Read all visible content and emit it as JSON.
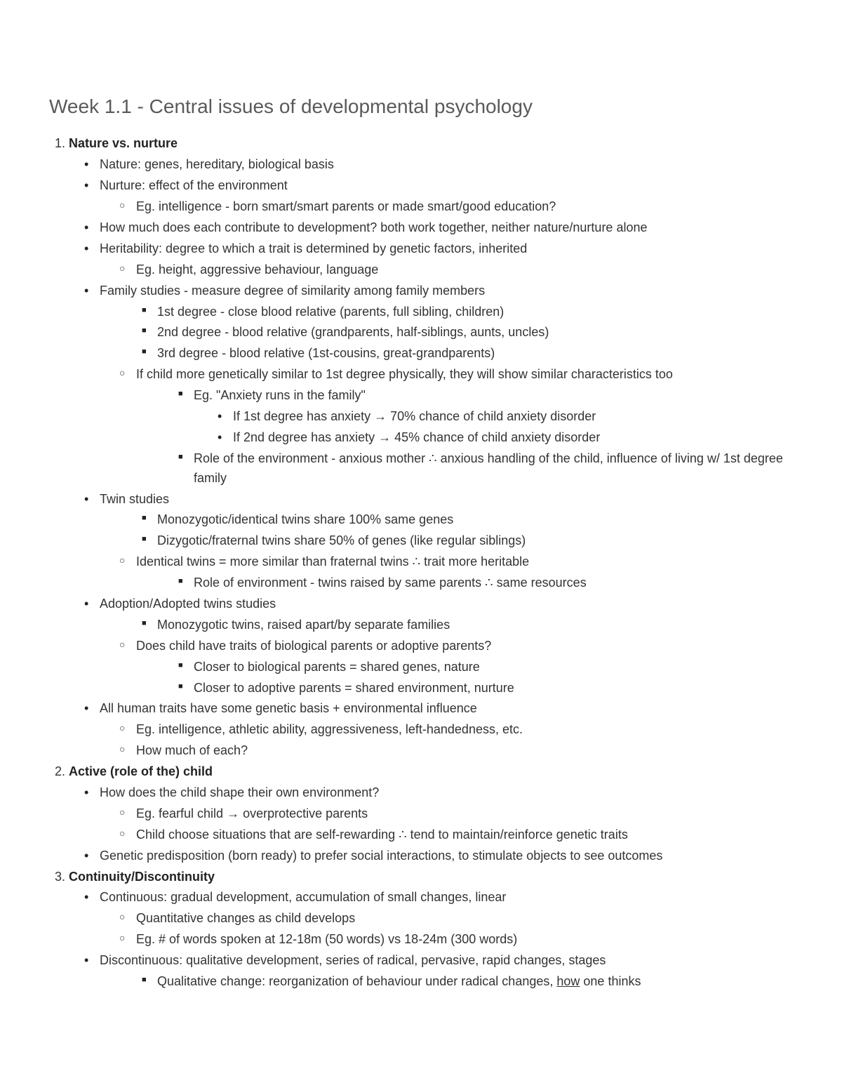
{
  "colors": {
    "background": "#ffffff",
    "title": "#5a5a5a",
    "body": "#333333",
    "bold": "#222222"
  },
  "typography": {
    "title_fontsize": 28,
    "body_fontsize": 18,
    "line_height": 1.55,
    "font_family": "Arial"
  },
  "title": "Week 1.1 - Central issues of developmental psychology",
  "sections": [
    {
      "heading": "Nature vs. nurture",
      "b": [
        {
          "t": "Nature: genes, hereditary, biological basis"
        },
        {
          "t": "Nurture: effect of the environment",
          "c": [
            {
              "t": "Eg. intelligence - born smart/smart parents or made smart/good education?"
            }
          ]
        },
        {
          "t": "How much does each contribute to development? both work together, neither nature/nurture alone"
        },
        {
          "t": "Heritability: degree to which a trait is determined by genetic factors, inherited",
          "c": [
            {
              "t": "Eg. height, aggressive behaviour, language"
            }
          ]
        },
        {
          "t": "Family studies - measure degree of similarity among family members",
          "s": [
            {
              "t": "1st degree - close blood relative (parents, full sibling, children)"
            },
            {
              "t": "2nd degree - blood relative (grandparents, half-siblings, aunts, uncles)"
            },
            {
              "t": "3rd degree - blood relative (1st-cousins, great-grandparents)"
            }
          ],
          "c": [
            {
              "t": "If child more genetically similar to 1st degree physically, they will show similar characteristics too",
              "s": [
                {
                  "t": "Eg. \"Anxiety runs in the family\"",
                  "d": [
                    {
                      "t": "If 1st degree has anxiety → 70% chance of child anxiety disorder"
                    },
                    {
                      "t": "If 2nd degree has anxiety → 45% chance of child anxiety disorder"
                    }
                  ]
                },
                {
                  "t": "Role of the environment - anxious mother ∴ anxious handling of the child, influence of living w/ 1st degree family"
                }
              ]
            }
          ]
        },
        {
          "t": "Twin studies",
          "s": [
            {
              "t": "Monozygotic/identical twins share 100% same genes"
            },
            {
              "t": "Dizygotic/fraternal twins share 50% of genes (like regular siblings)"
            }
          ],
          "c": [
            {
              "t": "Identical twins = more similar than fraternal twins ∴ trait more heritable",
              "s": [
                {
                  "t": "Role of environment - twins raised by same parents ∴ same resources"
                }
              ]
            }
          ]
        },
        {
          "t": "Adoption/Adopted twins studies",
          "s": [
            {
              "t": "Monozygotic twins, raised apart/by separate families"
            }
          ],
          "c": [
            {
              "t": "Does child have traits of biological parents or adoptive parents?",
              "s": [
                {
                  "t": "Closer to biological parents = shared genes, nature"
                },
                {
                  "t": "Closer to adoptive parents = shared environment, nurture"
                }
              ]
            }
          ]
        },
        {
          "t": "All human traits have some genetic basis + environmental influence",
          "c": [
            {
              "t": "Eg. intelligence, athletic ability, aggressiveness, left-handedness, etc."
            },
            {
              "t": "How much of each?"
            }
          ]
        }
      ]
    },
    {
      "heading": "Active (role of the) child",
      "b": [
        {
          "t": "How does the child shape their own environment?",
          "c": [
            {
              "t": "Eg. fearful child → overprotective parents"
            },
            {
              "t": "Child choose situations that are self-rewarding ∴ tend to maintain/reinforce genetic traits"
            }
          ]
        },
        {
          "t": "Genetic predisposition (born ready) to prefer social interactions, to stimulate objects to see outcomes"
        }
      ]
    },
    {
      "heading": "Continuity/Discontinuity",
      "b": [
        {
          "t": "Continuous: gradual development, accumulation of small changes, linear",
          "c": [
            {
              "t": "Quantitative changes as child develops"
            },
            {
              "t": "Eg. # of words spoken at 12-18m (50 words) vs 18-24m (300 words)"
            }
          ]
        },
        {
          "t": "Discontinuous: qualitative development, series of radical, pervasive, rapid changes, stages",
          "s": [
            {
              "t_pre": "Qualitative change: reorganization of behaviour under radical changes, ",
              "u": "how",
              "t_post": " one thinks"
            }
          ]
        }
      ]
    }
  ]
}
